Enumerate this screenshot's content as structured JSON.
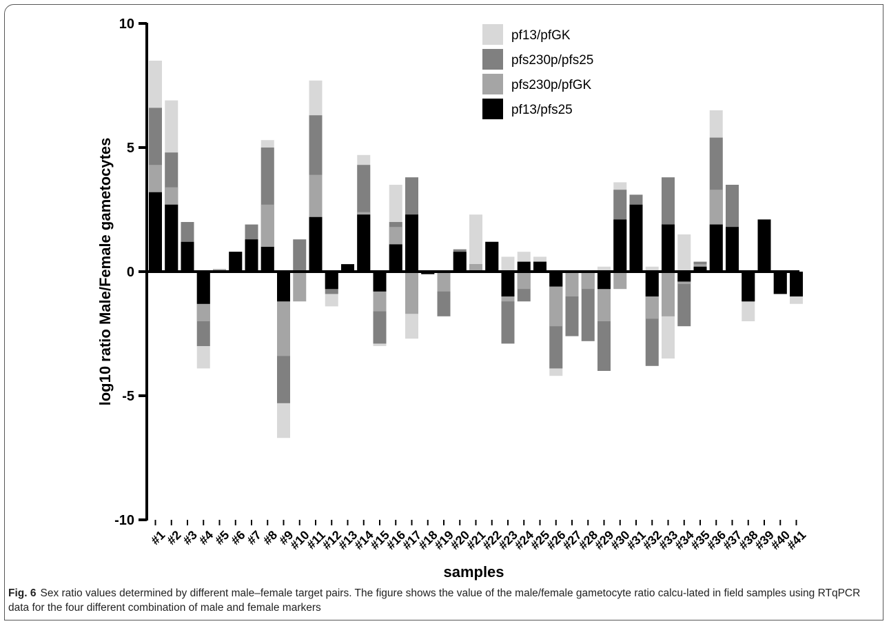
{
  "chart_data": {
    "type": "bar",
    "xlabel": "samples",
    "ylabel": "log10 ratio Male/Female gametocytes",
    "ylim": [
      -10,
      10
    ],
    "yticks": [
      10,
      5,
      0,
      -5,
      -10
    ],
    "legend_position": "top-right",
    "categories": [
      "#1",
      "#2",
      "#3",
      "#4",
      "#5",
      "#6",
      "#7",
      "#8",
      "#9",
      "#10",
      "#11",
      "#12",
      "#13",
      "#14",
      "#15",
      "#16",
      "#17",
      "#18",
      "#19",
      "#20",
      "#21",
      "#22",
      "#23",
      "#24",
      "#25",
      "#26",
      "#27",
      "#28",
      "#29",
      "#30",
      "#31",
      "#32",
      "#33",
      "#34",
      "#35",
      "#36",
      "#37",
      "#38",
      "#39",
      "#40",
      "#41"
    ],
    "series": [
      {
        "name": "pf13/pfGK",
        "color": "#d8d8d8",
        "values": [
          8.5,
          6.9,
          1.2,
          -3.9,
          0.1,
          0.8,
          1.3,
          5.3,
          -6.7,
          0,
          7.7,
          -1.4,
          0.3,
          4.7,
          -3.0,
          3.5,
          -2.7,
          -0.1,
          0,
          0,
          2.3,
          1.2,
          0.6,
          0.8,
          0.6,
          -4.2,
          0,
          0,
          0.2,
          3.6,
          2.7,
          0.2,
          -3.5,
          1.5,
          0.4,
          6.5,
          1.7,
          -2.0,
          2.1,
          -0.9,
          -1.3
        ]
      },
      {
        "name": "pfs230p/pfs25",
        "color": "#808080",
        "values": [
          6.6,
          4.8,
          2.0,
          -3.0,
          0.1,
          0.8,
          1.9,
          5.0,
          -5.3,
          1.3,
          6.3,
          -0.9,
          0.3,
          4.3,
          -2.9,
          2.0,
          3.8,
          -0.1,
          -1.8,
          0.9,
          0.3,
          1.2,
          -2.9,
          -1.2,
          0.4,
          -3.9,
          -2.6,
          -2.8,
          -4.0,
          3.3,
          3.1,
          -3.8,
          3.8,
          -2.2,
          0.4,
          5.4,
          3.5,
          -1.2,
          2.1,
          -0.9,
          -1.0
        ]
      },
      {
        "name": "pfs230p/pfGK",
        "color": "#a5a5a5",
        "values": [
          4.3,
          3.4,
          1.2,
          -2.0,
          0.1,
          0.8,
          1.3,
          2.7,
          -3.4,
          -1.2,
          3.9,
          -0.7,
          0.3,
          2.4,
          -1.6,
          1.8,
          -1.7,
          -0.1,
          -0.8,
          0.8,
          0.3,
          1.2,
          -1.2,
          -0.7,
          0.4,
          -2.2,
          -1.0,
          -0.7,
          -2.0,
          -0.7,
          2.7,
          -1.9,
          -1.8,
          -0.5,
          0.3,
          3.3,
          1.7,
          -1.2,
          2.1,
          -0.9,
          -1.0
        ]
      },
      {
        "name": "pf13/pfs25",
        "color": "#000000",
        "values": [
          3.2,
          2.7,
          1.2,
          -1.3,
          0.05,
          0.8,
          1.3,
          1.0,
          -1.2,
          0,
          2.2,
          -0.7,
          0.3,
          2.3,
          -0.8,
          1.1,
          2.3,
          -0.1,
          0,
          0.8,
          0,
          1.2,
          -1.0,
          0.4,
          0.4,
          -0.6,
          0,
          0,
          -0.7,
          2.1,
          2.7,
          -1.0,
          1.9,
          -0.4,
          0.2,
          1.9,
          1.8,
          -1.2,
          2.1,
          -0.9,
          -1.0
        ]
      }
    ]
  },
  "caption": {
    "label": "Fig. 6",
    "text": "Sex ratio values determined by different male–female target pairs. The figure shows the value of the male/female gametocyte ratio calcu-lated in field samples using RTqPCR data for the four different combination of male and female markers"
  }
}
